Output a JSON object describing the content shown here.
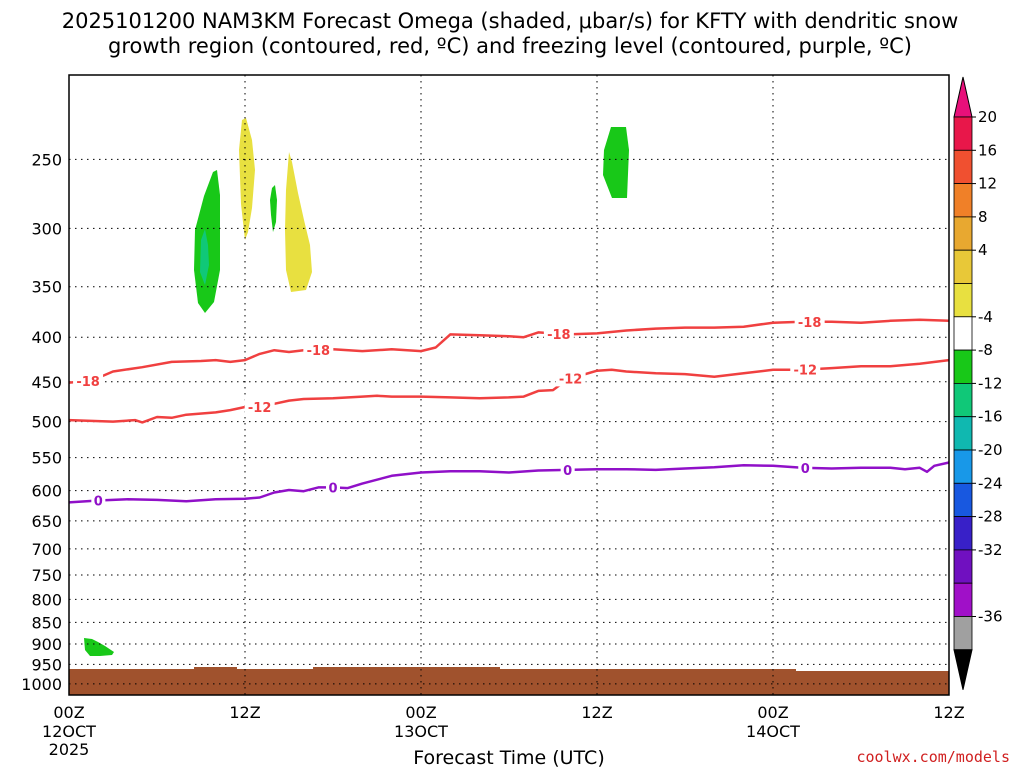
{
  "chart_data": {
    "type": "contour-timeheight",
    "title_line1": "2025101200 NAM3KM Forecast Omega (shaded, μbar/s) for KFTY with dendritic snow",
    "title_line2": "growth region (contoured, red, ºC) and freezing level (contoured, purple, ºC)",
    "xlabel": "Forecast Time (UTC)",
    "x_range_hours": [
      0,
      60
    ],
    "x_ticks": [
      {
        "hour": 0,
        "label": "00Z",
        "sub1": "12OCT",
        "sub2": "2025"
      },
      {
        "hour": 12,
        "label": "12Z",
        "sub1": "",
        "sub2": ""
      },
      {
        "hour": 24,
        "label": "00Z",
        "sub1": "13OCT",
        "sub2": ""
      },
      {
        "hour": 36,
        "label": "12Z",
        "sub1": "",
        "sub2": ""
      },
      {
        "hour": 48,
        "label": "00Z",
        "sub1": "14OCT",
        "sub2": ""
      },
      {
        "hour": 60,
        "label": "12Z",
        "sub1": "",
        "sub2": ""
      }
    ],
    "y_ticks": [
      250,
      300,
      350,
      400,
      450,
      500,
      550,
      600,
      650,
      700,
      750,
      800,
      850,
      900,
      950,
      1000
    ],
    "y_range_hpa": [
      200,
      1030
    ],
    "colorbar": {
      "labels": [
        "20",
        "16",
        "12",
        "8",
        "4",
        "-4",
        "-8",
        "-12",
        "-16",
        "-20",
        "-24",
        "-28",
        "-32",
        "-36"
      ],
      "colors": [
        "#e8174a",
        "#f05030",
        "#f08028",
        "#e8a830",
        "#e8c838",
        "#e8e040",
        "#ffffff",
        "#18c818",
        "#10c878",
        "#10b8b0",
        "#1898e8",
        "#1858e0",
        "#3820c8",
        "#7010c0",
        "#a010c8",
        "#a0a0a0"
      ],
      "top_color": "#e8107a",
      "bottom_color": "#000000"
    },
    "contours": [
      {
        "name": "dgz-minus18",
        "value": -18,
        "color": "#f04040",
        "points": [
          [
            0,
            451
          ],
          [
            1.5,
            449
          ],
          [
            3,
            438
          ],
          [
            5,
            433
          ],
          [
            7,
            427
          ],
          [
            9,
            426
          ],
          [
            10,
            425
          ],
          [
            11,
            427
          ],
          [
            12,
            425
          ],
          [
            13,
            418
          ],
          [
            14,
            414
          ],
          [
            15,
            416
          ],
          [
            16,
            414
          ],
          [
            18,
            413
          ],
          [
            20,
            415
          ],
          [
            22,
            413
          ],
          [
            24,
            415
          ],
          [
            25,
            411
          ],
          [
            26,
            397
          ],
          [
            28,
            398
          ],
          [
            30,
            399
          ],
          [
            31,
            400
          ],
          [
            32,
            395
          ],
          [
            34,
            397
          ],
          [
            36,
            396
          ],
          [
            38,
            393
          ],
          [
            40,
            391
          ],
          [
            42,
            390
          ],
          [
            44,
            390
          ],
          [
            46,
            389
          ],
          [
            48,
            385
          ],
          [
            50,
            384
          ],
          [
            52,
            384
          ],
          [
            54,
            385
          ],
          [
            56,
            383
          ],
          [
            58,
            382
          ],
          [
            60,
            383
          ]
        ],
        "labels": [
          {
            "hour": 1.3,
            "text": "-18"
          },
          {
            "hour": 17,
            "text": "-18"
          },
          {
            "hour": 33.4,
            "text": "-18"
          },
          {
            "hour": 50.5,
            "text": "-18"
          }
        ]
      },
      {
        "name": "dgz-minus12",
        "value": -12,
        "color": "#f04040",
        "points": [
          [
            0,
            498
          ],
          [
            3,
            500
          ],
          [
            4.5,
            498
          ],
          [
            5,
            501
          ],
          [
            6,
            494
          ],
          [
            7,
            495
          ],
          [
            8,
            491
          ],
          [
            10,
            488
          ],
          [
            11,
            485
          ],
          [
            12,
            481
          ],
          [
            13,
            481
          ],
          [
            14,
            477
          ],
          [
            15,
            473
          ],
          [
            16,
            471
          ],
          [
            18,
            470
          ],
          [
            20,
            468
          ],
          [
            21,
            467
          ],
          [
            22,
            468
          ],
          [
            24,
            468
          ],
          [
            26,
            469
          ],
          [
            28,
            470
          ],
          [
            30,
            469
          ],
          [
            31,
            468
          ],
          [
            32,
            461
          ],
          [
            33,
            460
          ],
          [
            34,
            447
          ],
          [
            35,
            442
          ],
          [
            36,
            437
          ],
          [
            37,
            436
          ],
          [
            38,
            438
          ],
          [
            40,
            440
          ],
          [
            42,
            441
          ],
          [
            44,
            444
          ],
          [
            46,
            440
          ],
          [
            48,
            436
          ],
          [
            50,
            436
          ],
          [
            52,
            434
          ],
          [
            54,
            432
          ],
          [
            56,
            432
          ],
          [
            58,
            429
          ],
          [
            60,
            425
          ]
        ],
        "labels": [
          {
            "hour": 13,
            "text": "-12"
          },
          {
            "hour": 34.2,
            "text": "-12"
          },
          {
            "hour": 50.2,
            "text": "-12"
          }
        ]
      },
      {
        "name": "freezing-level",
        "value": 0,
        "color": "#9010c8",
        "points": [
          [
            0,
            619
          ],
          [
            2,
            616
          ],
          [
            4,
            614
          ],
          [
            6,
            615
          ],
          [
            8,
            617
          ],
          [
            10,
            614
          ],
          [
            12,
            613
          ],
          [
            13,
            611
          ],
          [
            14,
            603
          ],
          [
            15,
            599
          ],
          [
            16,
            601
          ],
          [
            17,
            595
          ],
          [
            18,
            595
          ],
          [
            19,
            596
          ],
          [
            20,
            589
          ],
          [
            22,
            577
          ],
          [
            24,
            572
          ],
          [
            26,
            570
          ],
          [
            28,
            570
          ],
          [
            30,
            572
          ],
          [
            32,
            569
          ],
          [
            34,
            568
          ],
          [
            36,
            567
          ],
          [
            38,
            567
          ],
          [
            40,
            568
          ],
          [
            42,
            566
          ],
          [
            44,
            564
          ],
          [
            46,
            561
          ],
          [
            48,
            562
          ],
          [
            50,
            565
          ],
          [
            52,
            566
          ],
          [
            54,
            565
          ],
          [
            56,
            565
          ],
          [
            57,
            567
          ],
          [
            58,
            565
          ],
          [
            58.5,
            571
          ],
          [
            59,
            562
          ],
          [
            60,
            557
          ]
        ],
        "labels": [
          {
            "hour": 2,
            "text": "0"
          },
          {
            "hour": 18,
            "text": "0"
          },
          {
            "hour": 34,
            "text": "0"
          },
          {
            "hour": 50.2,
            "text": "0"
          }
        ]
      }
    ],
    "shaded_regions": [
      {
        "name": "omega-green-main",
        "bin": "-4 to -8",
        "color": "#18c818"
      },
      {
        "name": "omega-teal-core",
        "bin": "-8 to -12",
        "color": "#10c878"
      },
      {
        "name": "omega-yellow-left",
        "bin": "4 to 8",
        "color": "#e8e040"
      },
      {
        "name": "omega-green-small",
        "bin": "-4 to -8",
        "color": "#18c818"
      },
      {
        "name": "omega-yellow-right",
        "bin": "4 to 8",
        "color": "#e8e040"
      },
      {
        "name": "omega-green-upper",
        "bin": "-4 to -8",
        "color": "#18c818"
      },
      {
        "name": "omega-green-lowlevel",
        "bin": "-4 to -8",
        "color": "#18c818"
      }
    ],
    "terrain_color": "#a0522d"
  },
  "footer": {
    "credit": "coolwx.com/models",
    "credit_color": "#d02020"
  }
}
